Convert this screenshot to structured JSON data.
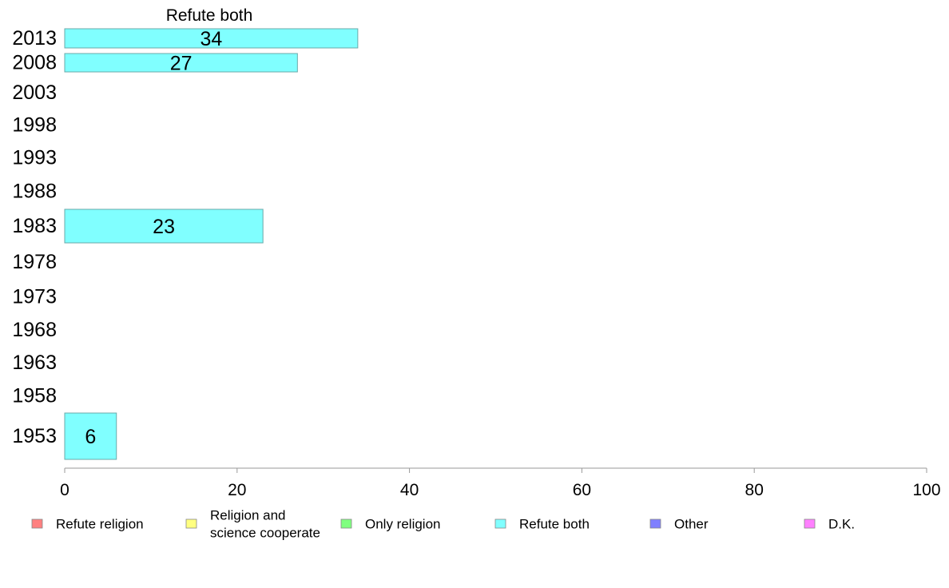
{
  "chart_data": {
    "type": "bar",
    "orientation": "horizontal",
    "title": "Refute both",
    "categories": [
      "2013",
      "2008",
      "2003",
      "1998",
      "1993",
      "1988",
      "1983",
      "1978",
      "1973",
      "1968",
      "1963",
      "1958",
      "1953"
    ],
    "series": [
      {
        "name": "Refute both",
        "values": [
          34,
          27,
          null,
          null,
          null,
          null,
          23,
          null,
          null,
          null,
          null,
          null,
          6
        ]
      }
    ],
    "data_labels": [
      "34",
      "27",
      "",
      "",
      "",
      "",
      "23",
      "",
      "",
      "",
      "",
      "",
      "6"
    ],
    "xlim": [
      0,
      100
    ],
    "xticks": [
      "0",
      "20",
      "40",
      "60",
      "80",
      "100"
    ],
    "grid": false,
    "legend": {
      "placement": "bottom",
      "entries": [
        {
          "lines": [
            "Refute religion"
          ],
          "color": "#ff8080"
        },
        {
          "lines": [
            "Religion and",
            "science cooperate"
          ],
          "color": "#ffff80"
        },
        {
          "lines": [
            "Only religion"
          ],
          "color": "#80ff80"
        },
        {
          "lines": [
            "Refute both"
          ],
          "color": "#80ffff"
        },
        {
          "lines": [
            "Other"
          ],
          "color": "#8080ff"
        },
        {
          "lines": [
            "D.K."
          ],
          "color": "#ff80ff"
        }
      ]
    },
    "bar_color": "#80ffff"
  }
}
